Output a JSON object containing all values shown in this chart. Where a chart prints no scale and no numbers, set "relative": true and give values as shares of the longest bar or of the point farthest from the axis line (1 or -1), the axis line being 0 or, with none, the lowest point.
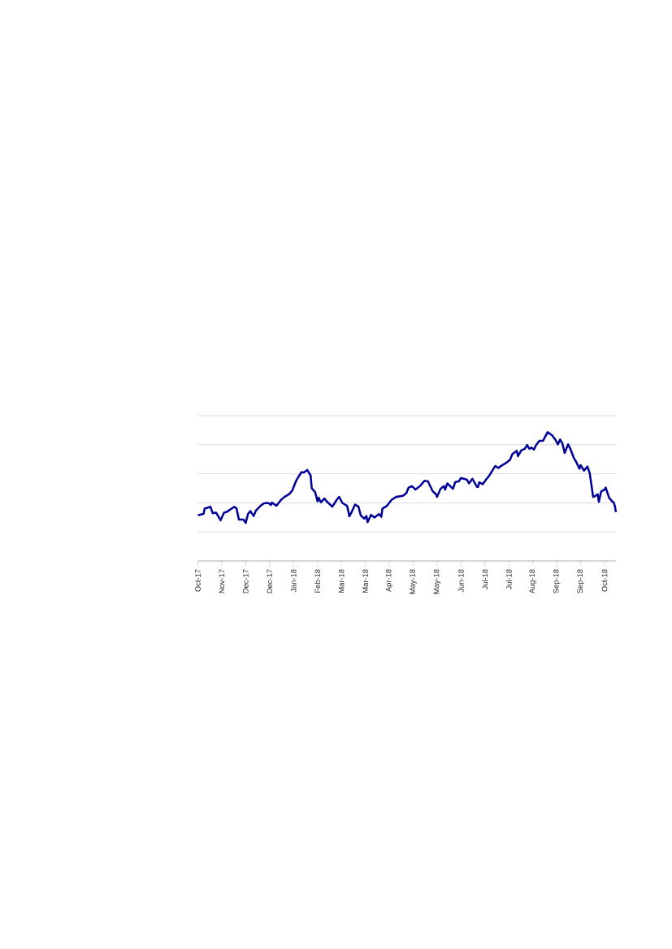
{
  "chart_data": {
    "type": "line",
    "relative": true,
    "grid": "y",
    "xlim": [
      "2017-10-27",
      "2018-10-29"
    ],
    "xticks": [
      {
        "value": "2017-10-27",
        "label": "Oct-17"
      },
      {
        "value": "2017-11-17",
        "label": "Nov-17"
      },
      {
        "value": "2017-12-08",
        "label": "Dec-17"
      },
      {
        "value": "2017-12-29",
        "label": "Dec-17"
      },
      {
        "value": "2018-01-19",
        "label": "Jan-18"
      },
      {
        "value": "2018-02-09",
        "label": "Feb-18"
      },
      {
        "value": "2018-03-02",
        "label": "Mar-18"
      },
      {
        "value": "2018-03-23",
        "label": "Mar-18"
      },
      {
        "value": "2018-04-13",
        "label": "Apr-18"
      },
      {
        "value": "2018-05-04",
        "label": "May-18"
      },
      {
        "value": "2018-05-25",
        "label": "May-18"
      },
      {
        "value": "2018-06-15",
        "label": "Jun-18"
      },
      {
        "value": "2018-07-06",
        "label": "Jul-18"
      },
      {
        "value": "2018-07-27",
        "label": "Jul-18"
      },
      {
        "value": "2018-08-17",
        "label": "Aug-18"
      },
      {
        "value": "2018-09-07",
        "label": "Sep-18"
      },
      {
        "value": "2018-09-28",
        "label": "Sep-18"
      },
      {
        "value": "2018-10-19",
        "label": "Oct-18"
      }
    ],
    "x": [
      "2017-10-27",
      "2017-11-01",
      "2017-11-02",
      "2017-11-07",
      "2017-11-09",
      "2017-11-12",
      "2017-11-16",
      "2017-11-19",
      "2017-11-21",
      "2017-11-28",
      "2017-11-30",
      "2017-12-02",
      "2017-12-06",
      "2017-12-08",
      "2017-12-10",
      "2017-12-12",
      "2017-12-15",
      "2017-12-17",
      "2017-12-21",
      "2017-12-24",
      "2017-12-28",
      "2017-12-30",
      "2017-12-31",
      "2018-01-04",
      "2018-01-08",
      "2018-01-11",
      "2018-01-15",
      "2018-01-18",
      "2018-01-21",
      "2018-01-23",
      "2018-01-26",
      "2018-01-28",
      "2018-01-31",
      "2018-02-03",
      "2018-02-04",
      "2018-02-07",
      "2018-02-09",
      "2018-02-10",
      "2018-02-12",
      "2018-02-15",
      "2018-02-17",
      "2018-02-22",
      "2018-02-26",
      "2018-02-28",
      "2018-03-03",
      "2018-03-07",
      "2018-03-09",
      "2018-03-11",
      "2018-03-14",
      "2018-03-17",
      "2018-03-19",
      "2018-03-22",
      "2018-03-24",
      "2018-03-25",
      "2018-03-28",
      "2018-03-31",
      "2018-04-04",
      "2018-04-06",
      "2018-04-07",
      "2018-04-11",
      "2018-04-15",
      "2018-04-19",
      "2018-04-25",
      "2018-04-28",
      "2018-04-30",
      "2018-05-03",
      "2018-05-06",
      "2018-05-10",
      "2018-05-14",
      "2018-05-17",
      "2018-05-21",
      "2018-05-24",
      "2018-05-25",
      "2018-05-28",
      "2018-05-31",
      "2018-06-01",
      "2018-06-03",
      "2018-06-08",
      "2018-06-10",
      "2018-06-13",
      "2018-06-15",
      "2018-06-20",
      "2018-06-22",
      "2018-06-25",
      "2018-06-29",
      "2018-06-30",
      "2018-07-01",
      "2018-07-04",
      "2018-07-07",
      "2018-07-10",
      "2018-07-15",
      "2018-07-18",
      "2018-07-20",
      "2018-07-24",
      "2018-07-28",
      "2018-07-30",
      "2018-08-03",
      "2018-08-04",
      "2018-08-07",
      "2018-08-10",
      "2018-08-12",
      "2018-08-14",
      "2018-08-16",
      "2018-08-18",
      "2018-08-20",
      "2018-08-23",
      "2018-08-26",
      "2018-08-30",
      "2018-09-03",
      "2018-09-06",
      "2018-09-08",
      "2018-09-10",
      "2018-09-12",
      "2018-09-14",
      "2018-09-17",
      "2018-09-19",
      "2018-09-22",
      "2018-09-24",
      "2018-09-27",
      "2018-09-28",
      "2018-10-01",
      "2018-10-04",
      "2018-10-06",
      "2018-10-09",
      "2018-10-11",
      "2018-10-13",
      "2018-10-14",
      "2018-10-16",
      "2018-10-19",
      "2018-10-20",
      "2018-10-23",
      "2018-10-26",
      "2018-10-27",
      "2018-10-28",
      "2018-10-29"
    ],
    "series": [
      {
        "color": "#000099",
        "values": [
          0.354,
          0.366,
          0.406,
          0.421,
          0.371,
          0.375,
          0.316,
          0.375,
          0.379,
          0.421,
          0.406,
          0.322,
          0.322,
          0.295,
          0.364,
          0.387,
          0.349,
          0.392,
          0.428,
          0.447,
          0.45,
          0.434,
          0.453,
          0.428,
          0.474,
          0.497,
          0.518,
          0.548,
          0.617,
          0.649,
          0.69,
          0.687,
          0.706,
          0.663,
          0.564,
          0.533,
          0.463,
          0.491,
          0.455,
          0.485,
          0.463,
          0.421,
          0.476,
          0.497,
          0.449,
          0.428,
          0.347,
          0.379,
          0.438,
          0.421,
          0.354,
          0.328,
          0.349,
          0.301,
          0.358,
          0.337,
          0.364,
          0.343,
          0.406,
          0.428,
          0.474,
          0.497,
          0.505,
          0.526,
          0.569,
          0.581,
          0.554,
          0.581,
          0.623,
          0.617,
          0.543,
          0.518,
          0.497,
          0.56,
          0.581,
          0.554,
          0.602,
          0.56,
          0.613,
          0.617,
          0.644,
          0.632,
          0.602,
          0.638,
          0.575,
          0.575,
          0.611,
          0.596,
          0.632,
          0.665,
          0.737,
          0.722,
          0.737,
          0.758,
          0.785,
          0.828,
          0.855,
          0.813,
          0.859,
          0.87,
          0.901,
          0.87,
          0.88,
          0.864,
          0.901,
          0.933,
          0.933,
          1.0,
          0.975,
          0.939,
          0.905,
          0.943,
          0.912,
          0.838,
          0.905,
          0.87,
          0.8,
          0.771,
          0.716,
          0.744,
          0.701,
          0.733,
          0.68,
          0.497,
          0.505,
          0.518,
          0.459,
          0.539,
          0.554,
          0.569,
          0.491,
          0.459,
          0.455,
          0.428,
          0.379
        ]
      }
    ]
  }
}
